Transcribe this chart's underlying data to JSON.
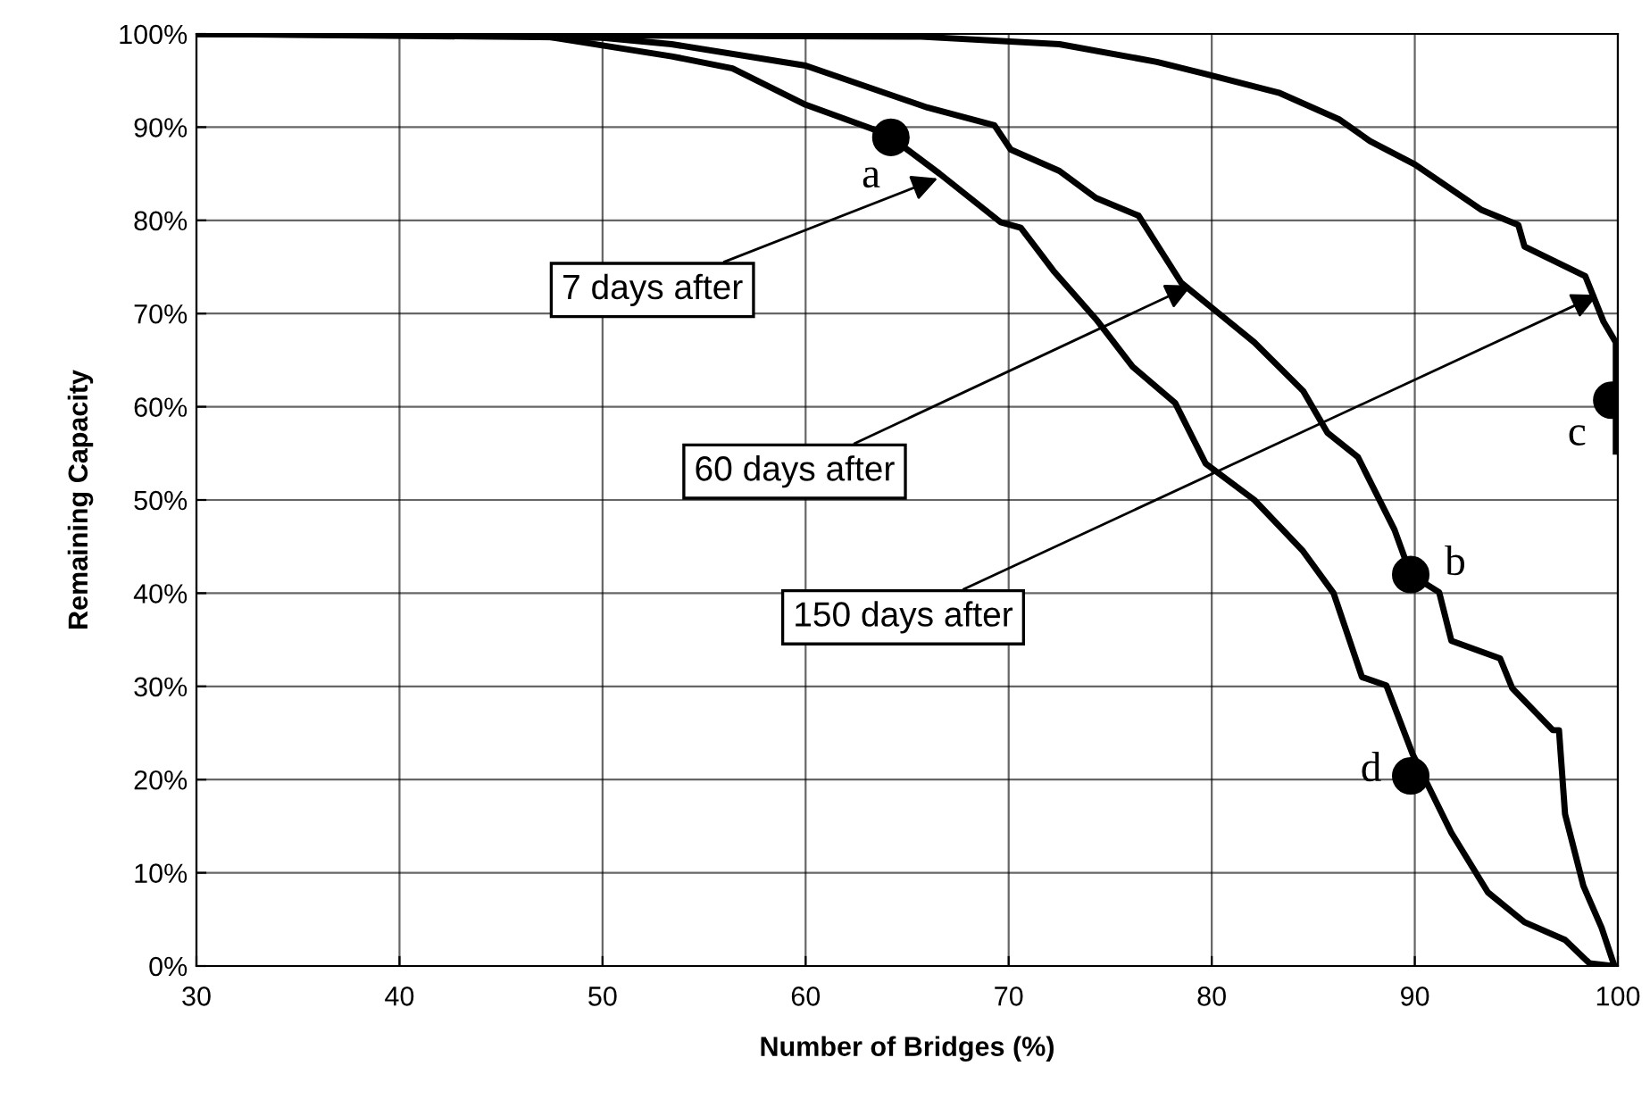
{
  "chart_data": {
    "type": "line",
    "xlabel": "Number of Bridges (%)",
    "ylabel": "Remaining Capacity",
    "xlim": [
      30,
      100
    ],
    "xticks": [
      30,
      40,
      50,
      60,
      70,
      80,
      90,
      100
    ],
    "ylim": [
      0,
      100
    ],
    "yticks": [
      {
        "value": 0,
        "label": "0%"
      },
      {
        "value": 10,
        "label": "10%"
      },
      {
        "value": 20,
        "label": "20%"
      },
      {
        "value": 30,
        "label": "30%"
      },
      {
        "value": 40,
        "label": "40%"
      },
      {
        "value": 50,
        "label": "50%"
      },
      {
        "value": 60,
        "label": "60%"
      },
      {
        "value": 70,
        "label": "70%"
      },
      {
        "value": 80,
        "label": "80%"
      },
      {
        "value": 90,
        "label": "90%"
      },
      {
        "value": 100,
        "label": "100%"
      }
    ],
    "grid": true,
    "marker": "none",
    "line_style": "solid",
    "series": [
      {
        "color": "#000000",
        "x": [
          30,
          47,
          53.4,
          56.4,
          60,
          63.3,
          64.2,
          66.6,
          69.6,
          70.6,
          72.2,
          74.3,
          76.1,
          78.2,
          79.7,
          82.1,
          84.5,
          86,
          87.4,
          88.6,
          89.9,
          91.8,
          93.6,
          95.4,
          97.4,
          98.6,
          99.8
        ],
        "values": [
          100,
          99.8,
          97.6,
          96.3,
          92.4,
          89.8,
          88.9,
          85,
          79.8,
          79.2,
          74.6,
          69.4,
          64.3,
          60.4,
          53.9,
          50,
          44.5,
          40,
          31,
          30.1,
          22.7,
          14.3,
          7.9,
          4.7,
          2.8,
          0.3,
          0
        ]
      },
      {
        "color": "#000000",
        "x": [
          30,
          50,
          53.4,
          60,
          66,
          69.3,
          70.1,
          72.5,
          74.3,
          76.4,
          78.5,
          80.3,
          82.1,
          84.5,
          85.7,
          87.2,
          89,
          89.8,
          91.2,
          91.8,
          94.2,
          94.8,
          96.8,
          97.1,
          97.4,
          98.3,
          99.2,
          99.8
        ],
        "values": [
          100,
          99.6,
          98.9,
          96.6,
          92.1,
          90.2,
          87.6,
          85.3,
          82.4,
          80.5,
          73.3,
          70.1,
          66.9,
          61.7,
          57.2,
          54.6,
          46.8,
          42,
          40.1,
          34.9,
          33,
          29.8,
          25.3,
          25.3,
          16.3,
          8.6,
          4.1,
          0.2
        ]
      },
      {
        "color": "#000000",
        "x": [
          30,
          65.7,
          72.5,
          77.3,
          79.7,
          83.3,
          86.3,
          87.8,
          90,
          93.3,
          95.1,
          95.4,
          98.4,
          99.3,
          99.9,
          99.9
        ],
        "values": [
          100,
          99.7,
          98.9,
          97,
          95.7,
          93.7,
          90.8,
          88.5,
          86,
          81.1,
          79.5,
          77.2,
          74,
          69.1,
          66.9,
          55.2
        ]
      },
      {
        "type": "scatter",
        "marker": "circle",
        "color": "#000000",
        "x": [
          64.2,
          89.8,
          99.7,
          89.8
        ],
        "values": [
          88.9,
          42,
          60.7,
          20.4
        ]
      }
    ],
    "annotations": [
      {
        "text": "7 days after",
        "x": 66.5,
        "y": 84.5
      },
      {
        "text": "60 days after",
        "x": 79,
        "y": 73
      },
      {
        "text": "150 days after",
        "x": 99,
        "y": 72
      },
      {
        "text": "a",
        "x": 64.2,
        "y": 88.9
      },
      {
        "text": "b",
        "x": 89.8,
        "y": 42
      },
      {
        "text": "c",
        "x": 99.7,
        "y": 60.7
      },
      {
        "text": "d",
        "x": 89.8,
        "y": 20.4
      }
    ]
  }
}
